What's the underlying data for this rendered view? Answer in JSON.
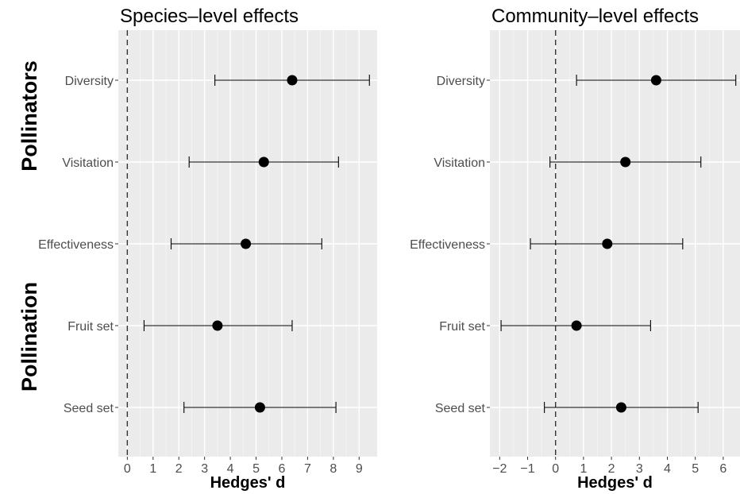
{
  "row_labels": {
    "top": "Pollinators",
    "bottom": "Pollination"
  },
  "chart_data": [
    {
      "type": "scatter",
      "title": "Species–level effects",
      "xlabel": "Hedges' d",
      "ylabel": "",
      "xlim": [
        -0.35,
        9.7
      ],
      "xticks": [
        0,
        1,
        2,
        3,
        4,
        5,
        6,
        7,
        8,
        9
      ],
      "xtick_labels": [
        "0",
        "1",
        "2",
        "3",
        "4",
        "5",
        "6",
        "7",
        "8",
        "9"
      ],
      "categories": [
        "Diversity",
        "Visitation",
        "Effectiveness",
        "Fruit set",
        "Seed set"
      ],
      "values": [
        6.4,
        5.3,
        4.6,
        3.5,
        5.15
      ],
      "ci_lower": [
        3.4,
        2.4,
        1.7,
        0.65,
        2.2
      ],
      "ci_upper": [
        9.4,
        8.2,
        7.55,
        6.4,
        8.1
      ],
      "reference_line": 0,
      "grid": true
    },
    {
      "type": "scatter",
      "title": "Community–level effects",
      "xlabel": "Hedges' d",
      "ylabel": "",
      "xlim": [
        -2.35,
        6.6
      ],
      "xticks": [
        -2,
        -1,
        0,
        1,
        2,
        3,
        4,
        5,
        6
      ],
      "xtick_labels": [
        "−2",
        "−1",
        "0",
        "1",
        "2",
        "3",
        "4",
        "5",
        "6"
      ],
      "categories": [
        "Diversity",
        "Visitation",
        "Effectiveness",
        "Fruit set",
        "Seed set"
      ],
      "values": [
        3.6,
        2.5,
        1.85,
        0.75,
        2.35
      ],
      "ci_lower": [
        0.75,
        -0.2,
        -0.9,
        -1.95,
        -0.4
      ],
      "ci_upper": [
        6.45,
        5.2,
        4.55,
        3.4,
        5.1
      ],
      "reference_line": 0,
      "grid": true
    }
  ]
}
